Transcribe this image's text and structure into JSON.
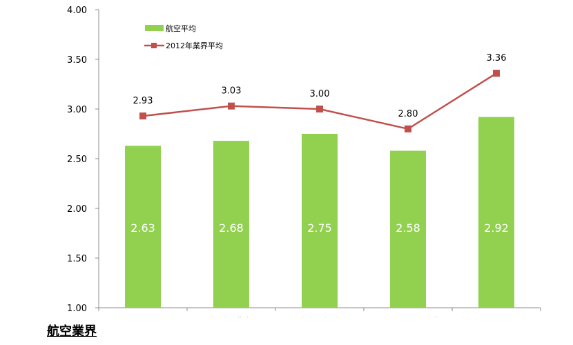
{
  "chart_data": {
    "type": "bar",
    "categories": [
      "利用しやすさ",
      "選択肢の豊富さ",
      "役立度／解決度",
      "センターとの連携",
      "安心して利用できる"
    ],
    "series": [
      {
        "name": "航空平均",
        "kind": "bar",
        "color": "#92D050",
        "values": [
          2.63,
          2.68,
          2.75,
          2.58,
          2.92
        ],
        "labels": [
          "2.63",
          "2.68",
          "2.75",
          "2.58",
          "2.92"
        ]
      },
      {
        "name": "2012年業界平均",
        "kind": "line",
        "color": "#C0504D",
        "values": [
          2.93,
          3.03,
          3.0,
          2.8,
          3.36
        ],
        "labels": [
          "2.93",
          "3.03",
          "3.00",
          "2.80",
          "3.36"
        ]
      }
    ],
    "ylim": [
      1.0,
      4.0
    ],
    "yticks": [
      1.0,
      1.5,
      2.0,
      2.5,
      3.0,
      3.5,
      4.0
    ],
    "ytick_labels": [
      "1.00",
      "1.50",
      "2.00",
      "2.50",
      "3.00",
      "3.50",
      "4.00"
    ],
    "grid": false,
    "legend_position": "top-left"
  },
  "footer_label": "航空業界"
}
